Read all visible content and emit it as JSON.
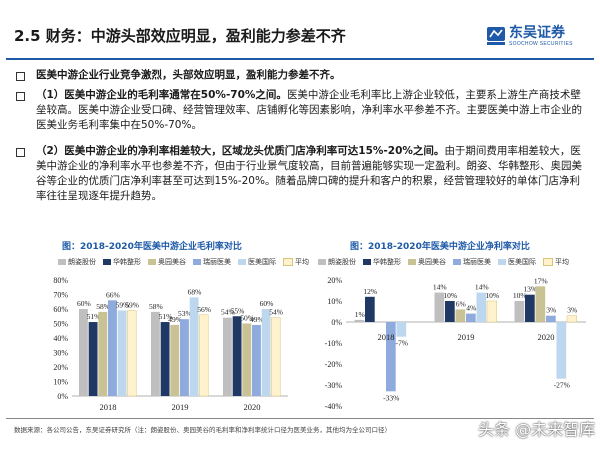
{
  "header": {
    "title": "2.5 财务：中游头部效应明显，盈利能力参差不齐",
    "logo_cn": "东吴证券",
    "logo_en": "SOOCHOW SECURITIES"
  },
  "bullets": [
    {
      "bold": "医美中游企业行业竞争激烈，头部效应明显，盈利能力参差不齐。",
      "rest": ""
    },
    {
      "bold": "（1）医美中游企业的毛利率通常在50%-70%之间。",
      "rest": "医美中游企业毛利率比上游企业较低，主要系上游生产商技术壁垒较高。医美中游企业受口碑、经营管理效率、店铺孵化等因素影响，净利率水平参差不齐。主要医美中游上市企业的医美业务毛利率集中在50%-70%。"
    },
    {
      "bold": "（2）医美中游企业的净利率相差较大，区域龙头优质门店净利率可达15%-20%之间。",
      "rest": "由于期间费用率相差较大，医美中游企业的净利率水平也参差不齐，但由于行业景气度较高，目前普遍能够实现一定盈利。朗姿、华韩整形、奥园美谷等企业的优质门店净利率甚至可达到15%-20%。随着品牌口碑的提升和客户的积累，经营管理较好的单体门店净利率往往呈现逐年提升趋势。"
    }
  ],
  "chart_left_title": "图：2018-2020年医美中游企业毛利率对比",
  "chart_right_title": "图：2018-2020年医美中游企业净利率对比",
  "legend_left": [
    "朗姿股份",
    "华韩整形",
    "奥园美谷",
    "瑞丽医美",
    "医美国际",
    "平均"
  ],
  "legend_right": [
    "朗姿股份",
    "华韩整形",
    "奥园美谷",
    "瑞丽医美",
    "医美国际",
    "平均"
  ],
  "colors": [
    "#bfbfbf",
    "#1f3864",
    "#c9c295",
    "#8faadc",
    "#bdd7ee",
    "#fff2cc"
  ],
  "chart_data": [
    {
      "type": "bar",
      "title": "2018-2020年医美中游企业毛利率对比",
      "categories": [
        "2018",
        "2019",
        "2020"
      ],
      "series": [
        {
          "name": "朗姿股份",
          "values": [
            60,
            58,
            54
          ]
        },
        {
          "name": "华韩整形",
          "values": [
            51,
            51,
            55
          ]
        },
        {
          "name": "奥园美谷",
          "values": [
            58,
            49,
            50
          ]
        },
        {
          "name": "瑞丽医美",
          "values": [
            66,
            53,
            49
          ]
        },
        {
          "name": "医美国际",
          "values": [
            59,
            68,
            60
          ]
        },
        {
          "name": "平均",
          "values": [
            59,
            56,
            54
          ]
        }
      ],
      "value_labels": [
        [
          "60%",
          "51%",
          "58%",
          "66%",
          "59%",
          "59%"
        ],
        [
          "58%",
          "51%",
          "49%",
          "53%",
          "68%",
          "56%"
        ],
        [
          "54%",
          "55%",
          "50%",
          "49%",
          "60%",
          "54%"
        ]
      ],
      "ylim": [
        0,
        80
      ],
      "yticks": [
        "0%",
        "10%",
        "20%",
        "30%",
        "40%",
        "50%",
        "60%",
        "70%",
        "80%"
      ],
      "grid": false,
      "legend": "top"
    },
    {
      "type": "bar",
      "title": "2018-2020年医美中游企业净利率对比",
      "categories": [
        "2018",
        "2019",
        "2020"
      ],
      "series": [
        {
          "name": "朗姿股份",
          "values": [
            1,
            14,
            10
          ]
        },
        {
          "name": "华韩整形",
          "values": [
            12,
            10,
            13
          ]
        },
        {
          "name": "奥园美谷",
          "values": [
            null,
            6,
            17
          ]
        },
        {
          "name": "瑞丽医美",
          "values": [
            -33,
            4,
            3
          ]
        },
        {
          "name": "医美国际",
          "values": [
            -7,
            14,
            -27
          ]
        },
        {
          "name": "平均",
          "values": [
            null,
            10,
            3
          ]
        }
      ],
      "value_labels": [
        [
          "1%",
          "12%",
          "",
          "-33%",
          "-7%",
          ""
        ],
        [
          "14%",
          "10%",
          "6%",
          "4%",
          "14%",
          "10%"
        ],
        [
          "10%",
          "13%",
          "17%",
          "3%",
          "-27%",
          "3%"
        ]
      ],
      "ylim": [
        -40,
        20
      ],
      "yticks": [
        "-40%",
        "-30%",
        "-20%",
        "-10%",
        "0%",
        "10%",
        "20%"
      ],
      "grid": false,
      "legend": "top"
    }
  ],
  "source": "数据来源：各公司公告，东吴证券研究所（注：朗姿股份、奥园美谷的毛利率和净利率统计口径为医美业务，其他均为全公司口径）",
  "watermark": "头条 @未来智库"
}
